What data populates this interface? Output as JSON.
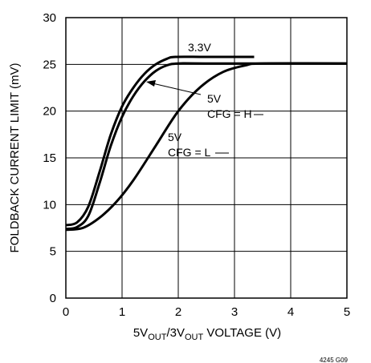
{
  "chart_data": {
    "type": "line",
    "title": "",
    "xlabel": {
      "prefix": "5V",
      "sub1": "OUT",
      "mid": "/3V",
      "sub2": "OUT",
      "suffix": " VOLTAGE (V)"
    },
    "ylabel": "FOLDBACK CURRENT LIMIT (mV)",
    "xlim": [
      0,
      5
    ],
    "ylim": [
      0,
      30
    ],
    "xticks": [
      "0",
      "1",
      "2",
      "3",
      "4",
      "5"
    ],
    "yticks": [
      "0",
      "5",
      "10",
      "15",
      "20",
      "25",
      "30"
    ],
    "grid": true,
    "series": [
      {
        "name": "3.3V",
        "x": [
          0,
          0.2,
          0.4,
          0.6,
          0.8,
          1.0,
          1.2,
          1.4,
          1.6,
          1.8,
          1.95,
          2.5,
          3.35
        ],
        "y": [
          7.8,
          8.1,
          9.8,
          13.5,
          17.5,
          20.5,
          22.5,
          24.0,
          25.0,
          25.6,
          25.8,
          25.8,
          25.8
        ]
      },
      {
        "name": "5V CFG = H",
        "x": [
          0,
          0.2,
          0.4,
          0.6,
          0.8,
          1.0,
          1.2,
          1.4,
          1.6,
          1.8,
          2.0,
          2.5,
          5.0
        ],
        "y": [
          7.4,
          7.6,
          8.8,
          12.3,
          16.3,
          19.4,
          21.6,
          23.2,
          24.3,
          24.9,
          25.1,
          25.1,
          25.1
        ]
      },
      {
        "name": "5V CFG = L",
        "x": [
          0,
          0.3,
          0.6,
          0.9,
          1.2,
          1.6,
          2.0,
          2.4,
          2.8,
          3.2,
          3.5,
          5.0
        ],
        "y": [
          7.3,
          7.5,
          8.6,
          10.3,
          12.6,
          16.3,
          20.0,
          22.6,
          24.2,
          24.9,
          25.1,
          25.1
        ]
      }
    ],
    "annotations": {
      "label_33": "3.3V",
      "label_5v_h": "5V",
      "label_cfg_h": "CFG = H",
      "label_5v_l": "5V",
      "label_cfg_l": "CFG = L"
    },
    "figure_code": "4245 G09"
  },
  "colors": {
    "line": "#000000",
    "grid": "#000000",
    "background": "#ffffff"
  }
}
